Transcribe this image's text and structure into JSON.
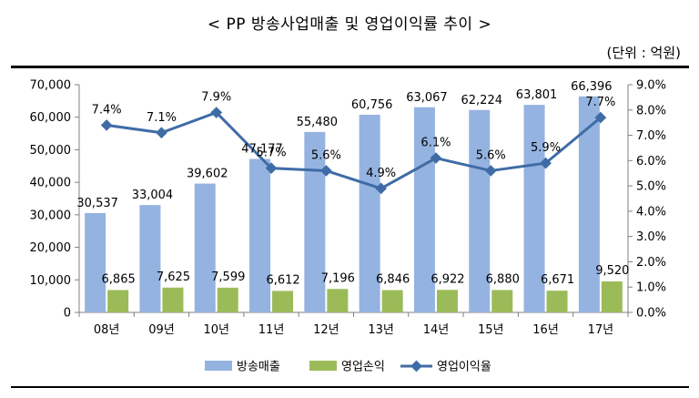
{
  "title": "< PP 방송사업매출 및 영업이익률 추이 >",
  "unit": "(단위 : 억원)",
  "colors": {
    "revenue": "#95B3E0",
    "profit": "#9BBB59",
    "margin": "#3F6CA6",
    "axis": "#808080"
  },
  "chart_data": {
    "type": "bar",
    "categories": [
      "08년",
      "09년",
      "10년",
      "11년",
      "12년",
      "13년",
      "14년",
      "15년",
      "16년",
      "17년"
    ],
    "series": [
      {
        "name": "방송매출",
        "type": "bar",
        "axis": "left",
        "values": [
          30537,
          33004,
          39602,
          47177,
          55480,
          60756,
          63067,
          62224,
          63801,
          66396
        ],
        "labels": [
          "30,537",
          "33,004",
          "39,602",
          "47,177",
          "55,480",
          "60,756",
          "63,067",
          "62,224",
          "63,801",
          "66,396"
        ]
      },
      {
        "name": "영업손익",
        "type": "bar",
        "axis": "left",
        "values": [
          6865,
          7625,
          7599,
          6612,
          7196,
          6846,
          6922,
          6880,
          6671,
          9520
        ],
        "labels": [
          "6,865",
          "7,625",
          "7,599",
          "6,612",
          "7,196",
          "6,846",
          "6,922",
          "6,880",
          "6,671",
          "9,520"
        ]
      },
      {
        "name": "영업이익율",
        "type": "line",
        "axis": "right",
        "values": [
          7.4,
          7.1,
          7.9,
          5.7,
          5.6,
          4.9,
          6.1,
          5.6,
          5.9,
          7.7
        ],
        "labels": [
          "7.4%",
          "7.1%",
          "7.9%",
          "5.7%",
          "5.6%",
          "4.9%",
          "6.1%",
          "5.6%",
          "5.9%",
          "7.7%"
        ]
      }
    ],
    "y_left": {
      "min": 0,
      "max": 70000,
      "ticks": [
        0,
        10000,
        20000,
        30000,
        40000,
        50000,
        60000,
        70000
      ],
      "tick_labels": [
        "0",
        "10,000",
        "20,000",
        "30,000",
        "40,000",
        "50,000",
        "60,000",
        "70,000"
      ]
    },
    "y_right": {
      "min": 0,
      "max": 9,
      "ticks": [
        0,
        1,
        2,
        3,
        4,
        5,
        6,
        7,
        8,
        9
      ],
      "tick_labels": [
        "0.0%",
        "1.0%",
        "2.0%",
        "3.0%",
        "4.0%",
        "5.0%",
        "6.0%",
        "7.0%",
        "8.0%",
        "9.0%"
      ]
    },
    "legend_position": "bottom",
    "grid": false
  }
}
